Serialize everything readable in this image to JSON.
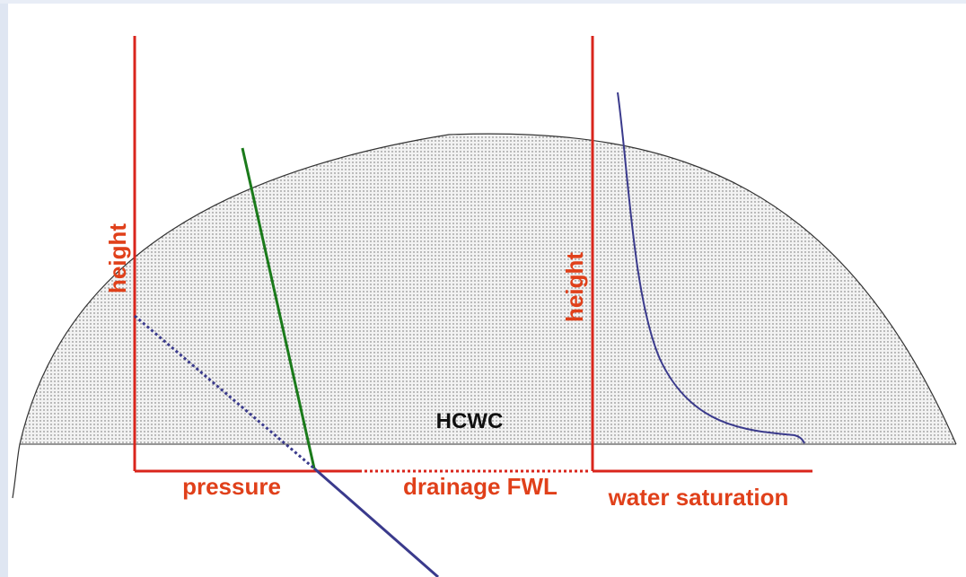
{
  "labels": {
    "left_axis": "height",
    "pressure_axis": "pressure",
    "fwl": "drainage FWL",
    "contact": "HCWC",
    "right_axis": "height",
    "saturation_axis": "water saturation"
  }
}
